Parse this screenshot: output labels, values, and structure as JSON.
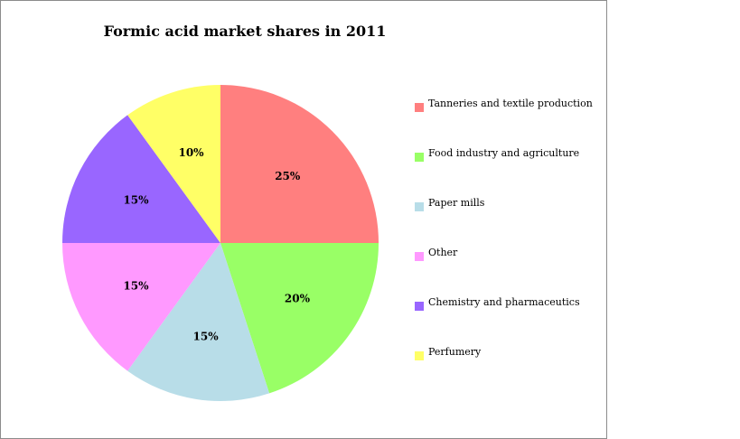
{
  "chart_data": {
    "type": "pie",
    "title": "Formic acid market shares in 2011",
    "categories": [
      "Tanneries and textile production",
      "Food industry and agriculture",
      "Paper mills",
      "Other",
      "Chemistry and pharmaceutics",
      "Perfumery"
    ],
    "values": [
      25,
      20,
      15,
      15,
      15,
      10
    ],
    "labels": [
      "25%",
      "20%",
      "15%",
      "15%",
      "15%",
      "10%"
    ],
    "colors": [
      "#ff7f7f",
      "#99ff66",
      "#b8dde8",
      "#ff99ff",
      "#9966ff",
      "#ffff66"
    ],
    "legend_position": "right",
    "start_angle": "12 o'clock, clockwise"
  }
}
